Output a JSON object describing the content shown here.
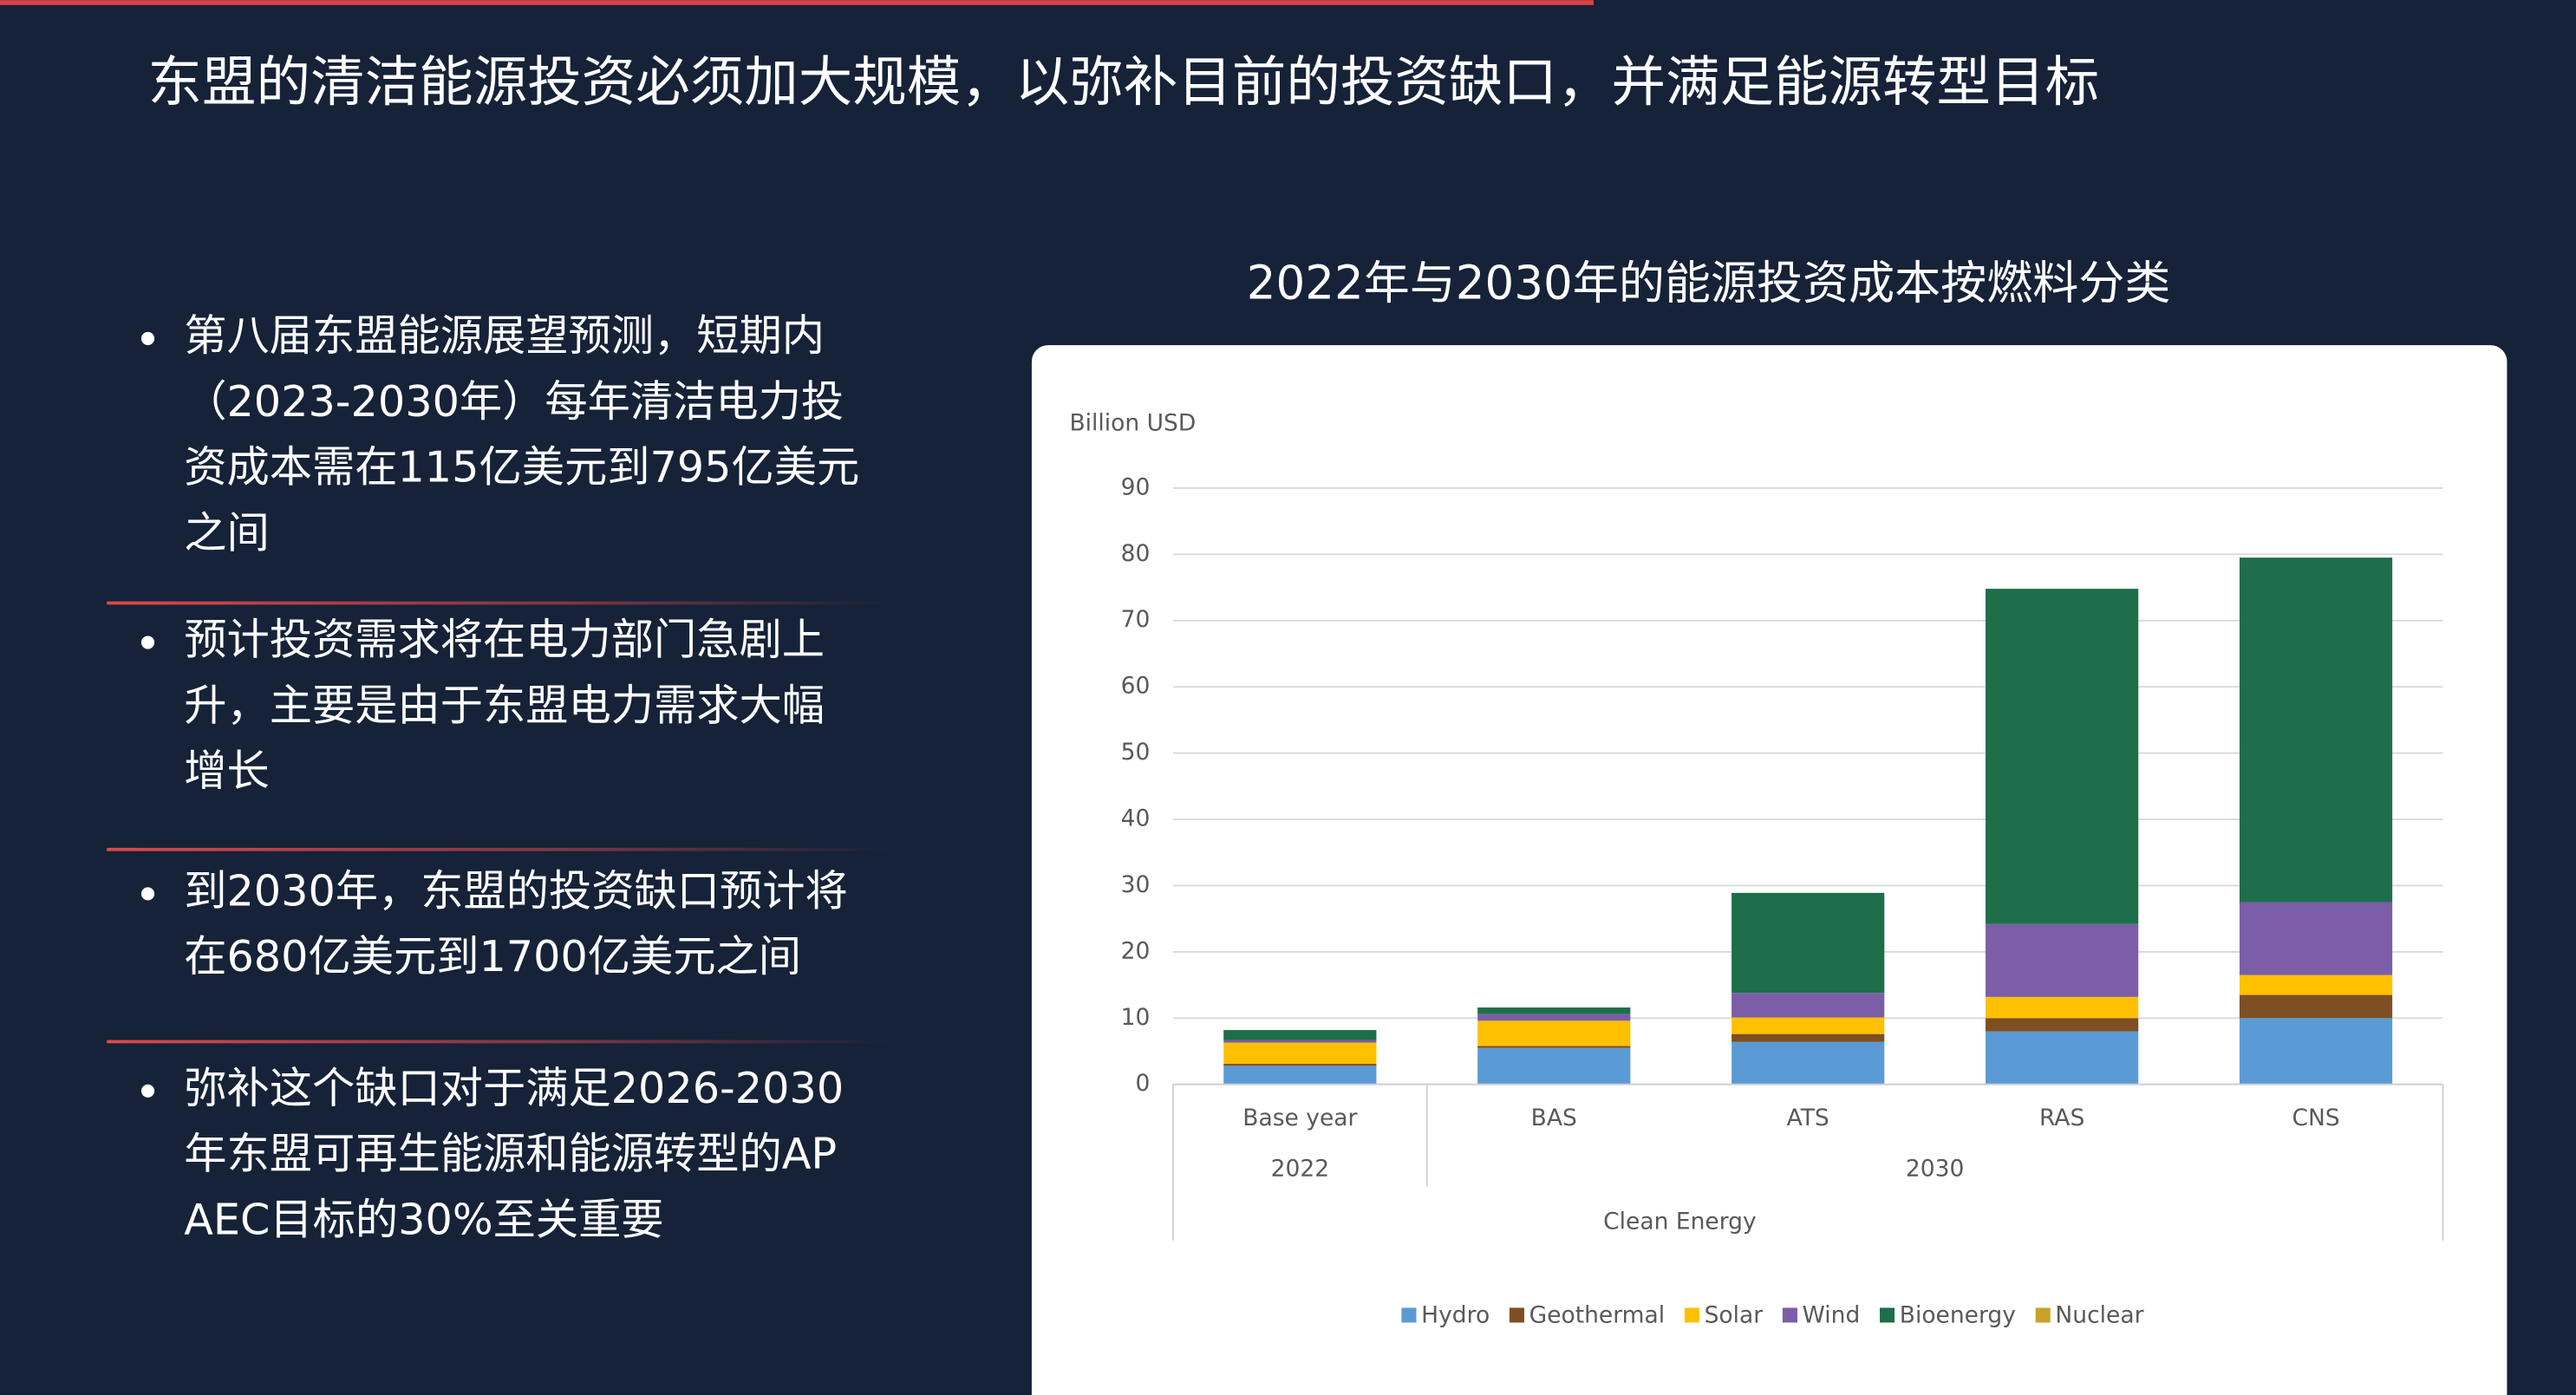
{
  "slide": {
    "title": "东盟的清洁能源投资必须加大规模，以弥补目前的投资缺口，并满足能源转型目标",
    "bullets": [
      [
        "第八届东盟能源展望预测，短期内",
        "（2023-2030年）每年清洁电力投",
        "资成本需在115亿美元到795亿美元",
        "之间"
      ],
      [
        "预计投资需求将在电力部门急剧上",
        "升，主要是由于东盟电力需求大幅",
        "增长"
      ],
      [
        "到2030年，东盟的投资缺口预计将",
        "在680亿美元到1700亿美元之间"
      ],
      [
        "弥补这个缺口对于满足2026-2030",
        "年东盟可再生能源和能源转型的AP",
        "AEC目标的30%至关重要"
      ]
    ]
  },
  "chart_data": {
    "type": "stacked_bar",
    "title": "2022年与2030年的能源投资成本按燃料分类",
    "ylabel": "Billion USD",
    "xlabel": "Clean Energy",
    "group_labels": [
      "2022",
      "2030"
    ],
    "categories": [
      "Base year",
      "BAS",
      "ATS",
      "RAS",
      "CNS"
    ],
    "series": [
      {
        "name": "Hydro",
        "color": "#5b9bd5",
        "values": [
          2.8,
          5.5,
          6.4,
          8,
          10
        ]
      },
      {
        "name": "Geothermal",
        "color": "#7f4f24",
        "values": [
          0.3,
          0.3,
          1.2,
          2,
          3.5
        ]
      },
      {
        "name": "Solar",
        "color": "#ffc000",
        "values": [
          3.2,
          3.8,
          2.5,
          3.2,
          3
        ]
      },
      {
        "name": "Wind",
        "color": "#7b5ea7",
        "values": [
          0.4,
          1,
          3.7,
          11,
          11
        ]
      },
      {
        "name": "Bioenergy",
        "color": "#1e6e4a",
        "values": [
          1.5,
          1,
          15.1,
          50.6,
          52
        ]
      },
      {
        "name": "Nuclear",
        "color": "#c9a227",
        "values": [
          0,
          0,
          0,
          0,
          0
        ]
      }
    ],
    "ylim": [
      0,
      90
    ],
    "yticks": [
      0,
      10,
      20,
      30,
      40,
      50,
      60,
      70,
      80,
      90
    ],
    "grid": true,
    "legend": "bottom"
  }
}
